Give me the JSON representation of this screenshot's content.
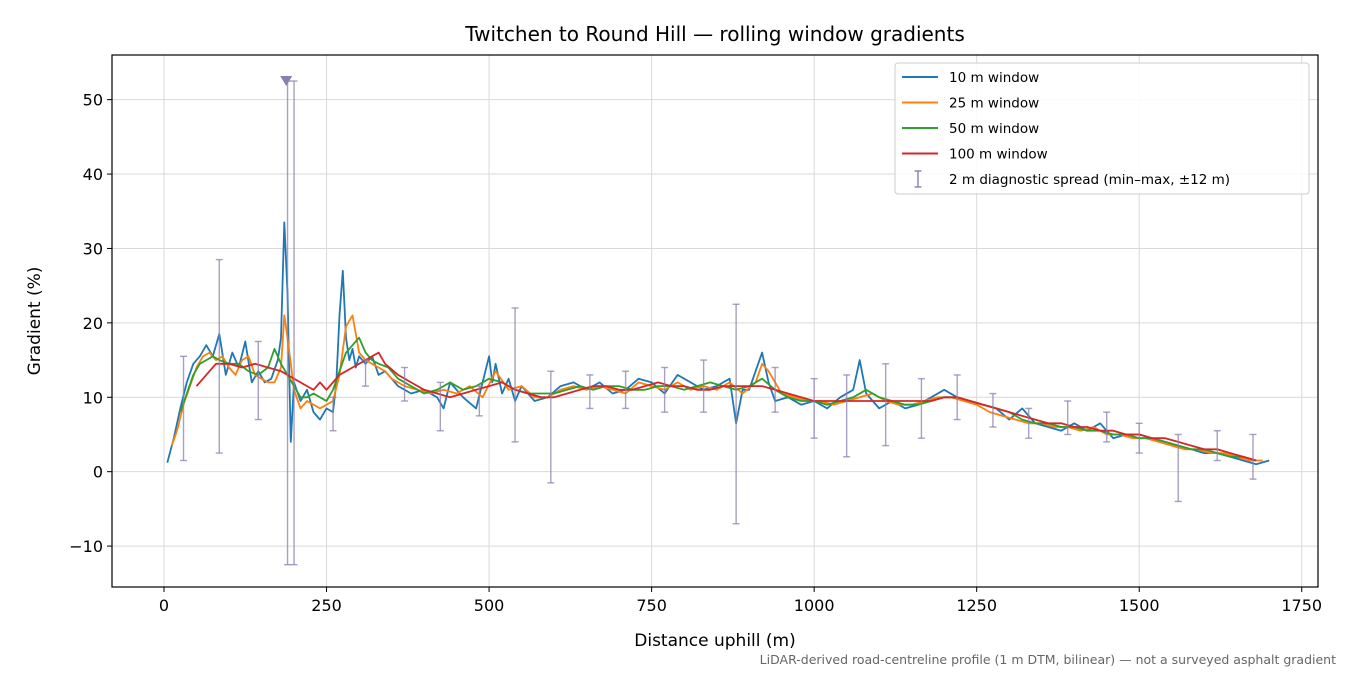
{
  "chart_data": {
    "type": "line",
    "title": "Twitchen to Round Hill — rolling window gradients",
    "xlabel": "Distance uphill (m)",
    "ylabel": "Gradient (%)",
    "footnote": "LiDAR-derived road-centreline profile (1 m DTM, bilinear) — not a surveyed asphalt gradient",
    "xlim": [
      -80,
      1775
    ],
    "ylim": [
      -15.5,
      56
    ],
    "x_ticks": [
      0,
      250,
      500,
      750,
      1000,
      1250,
      1500,
      1750
    ],
    "y_ticks": [
      -10,
      0,
      10,
      20,
      30,
      40,
      50
    ],
    "y_tick_labels": [
      "−10",
      "0",
      "10",
      "20",
      "30",
      "40",
      "50"
    ],
    "grid": true,
    "legend_position": "top-right",
    "colors": {
      "w10": "#1f77b4",
      "w25": "#ff7f0e",
      "w50": "#2ca02c",
      "w100": "#d62728",
      "spread": "#8c7fb0"
    },
    "series": [
      {
        "name": "10 m window",
        "color": "#1f77b4",
        "x": [
          5,
          15,
          25,
          35,
          45,
          55,
          65,
          75,
          85,
          95,
          105,
          115,
          125,
          135,
          145,
          155,
          165,
          175,
          180,
          185,
          190,
          195,
          200,
          210,
          220,
          230,
          240,
          250,
          260,
          265,
          270,
          275,
          280,
          285,
          290,
          295,
          300,
          310,
          320,
          330,
          340,
          350,
          360,
          380,
          400,
          420,
          430,
          440,
          460,
          480,
          500,
          505,
          510,
          520,
          530,
          540,
          550,
          570,
          590,
          610,
          630,
          650,
          670,
          690,
          710,
          730,
          750,
          770,
          790,
          810,
          830,
          850,
          870,
          880,
          890,
          900,
          910,
          920,
          930,
          940,
          960,
          980,
          1000,
          1020,
          1040,
          1060,
          1070,
          1080,
          1100,
          1120,
          1140,
          1160,
          1180,
          1200,
          1220,
          1240,
          1260,
          1280,
          1300,
          1320,
          1340,
          1360,
          1380,
          1400,
          1420,
          1440,
          1460,
          1480,
          1500,
          1520,
          1540,
          1560,
          1580,
          1600,
          1620,
          1640,
          1660,
          1680,
          1700
        ],
        "values": [
          1.2,
          4.5,
          8.5,
          12.0,
          14.5,
          15.5,
          17.0,
          15.5,
          18.5,
          13.0,
          16.0,
          14.0,
          17.5,
          12.0,
          13.5,
          12.0,
          12.5,
          15.0,
          18.0,
          33.5,
          24.0,
          4.0,
          12.0,
          9.5,
          11.0,
          8.0,
          7.0,
          8.5,
          8.0,
          12.0,
          21.0,
          27.0,
          18.0,
          15.0,
          16.5,
          14.0,
          15.5,
          14.5,
          15.5,
          13.0,
          13.5,
          12.5,
          11.5,
          10.5,
          11.0,
          10.0,
          8.5,
          12.0,
          10.0,
          8.5,
          15.5,
          12.0,
          14.5,
          10.5,
          12.5,
          9.5,
          11.5,
          9.5,
          10.0,
          11.5,
          12.0,
          11.0,
          12.0,
          10.5,
          11.0,
          12.5,
          12.0,
          10.5,
          13.0,
          12.0,
          11.0,
          11.5,
          12.5,
          6.5,
          11.0,
          11.0,
          13.5,
          16.0,
          12.0,
          9.5,
          10.0,
          9.0,
          9.5,
          8.5,
          10.0,
          11.0,
          15.0,
          10.5,
          8.5,
          9.5,
          8.5,
          9.0,
          10.0,
          11.0,
          10.0,
          9.5,
          9.0,
          8.5,
          7.0,
          8.5,
          6.5,
          6.0,
          5.5,
          6.5,
          5.5,
          6.5,
          4.5,
          5.0,
          5.0,
          4.5,
          4.0,
          3.5,
          3.0,
          2.5,
          2.5,
          2.0,
          1.5,
          1.0,
          1.5
        ]
      },
      {
        "name": "25 m window",
        "color": "#ff7f0e",
        "x": [
          12,
          20,
          30,
          40,
          50,
          60,
          70,
          80,
          90,
          100,
          110,
          120,
          130,
          140,
          150,
          160,
          170,
          180,
          185,
          190,
          195,
          200,
          210,
          220,
          230,
          240,
          250,
          260,
          270,
          280,
          290,
          300,
          310,
          320,
          330,
          340,
          350,
          370,
          390,
          410,
          430,
          450,
          470,
          490,
          510,
          530,
          550,
          570,
          590,
          610,
          630,
          650,
          670,
          690,
          710,
          730,
          750,
          770,
          790,
          810,
          830,
          850,
          870,
          890,
          910,
          920,
          930,
          950,
          970,
          990,
          1010,
          1030,
          1050,
          1070,
          1090,
          1110,
          1130,
          1150,
          1170,
          1190,
          1210,
          1230,
          1250,
          1270,
          1290,
          1310,
          1330,
          1350,
          1370,
          1390,
          1410,
          1430,
          1450,
          1470,
          1490,
          1510,
          1530,
          1550,
          1570,
          1590,
          1610,
          1630,
          1650,
          1670,
          1690
        ],
        "values": [
          3.5,
          5.5,
          9.0,
          11.5,
          14.0,
          15.5,
          16.0,
          15.0,
          15.5,
          14.0,
          13.0,
          15.0,
          15.5,
          13.0,
          12.5,
          12.0,
          12.0,
          14.0,
          21.0,
          18.0,
          14.5,
          11.0,
          8.5,
          9.5,
          9.0,
          8.5,
          9.0,
          9.5,
          13.0,
          19.5,
          21.0,
          16.0,
          15.0,
          14.5,
          14.0,
          13.5,
          12.5,
          11.5,
          11.0,
          10.5,
          11.0,
          10.5,
          11.5,
          10.0,
          13.5,
          11.0,
          11.5,
          10.0,
          10.0,
          11.0,
          11.5,
          11.0,
          11.5,
          11.0,
          10.5,
          12.0,
          11.5,
          11.0,
          12.0,
          11.0,
          11.5,
          11.0,
          12.0,
          10.5,
          12.0,
          14.5,
          13.5,
          10.5,
          10.0,
          9.5,
          9.5,
          9.0,
          9.5,
          10.0,
          10.5,
          9.5,
          9.0,
          9.0,
          9.5,
          10.0,
          10.0,
          9.5,
          9.0,
          8.0,
          7.5,
          7.0,
          6.5,
          6.5,
          6.0,
          6.0,
          5.5,
          6.0,
          5.0,
          5.0,
          4.5,
          4.5,
          4.0,
          3.5,
          3.0,
          3.0,
          2.5,
          2.5,
          2.0,
          1.5,
          1.5
        ]
      },
      {
        "name": "50 m window",
        "color": "#2ca02c",
        "x": [
          25,
          35,
          45,
          55,
          65,
          75,
          85,
          100,
          115,
          130,
          145,
          160,
          170,
          180,
          190,
          200,
          210,
          220,
          230,
          240,
          250,
          260,
          270,
          280,
          290,
          300,
          310,
          320,
          330,
          345,
          360,
          380,
          400,
          420,
          440,
          460,
          480,
          500,
          520,
          540,
          560,
          580,
          600,
          620,
          640,
          660,
          680,
          700,
          720,
          740,
          760,
          780,
          800,
          820,
          840,
          860,
          880,
          900,
          920,
          940,
          960,
          980,
          1000,
          1020,
          1040,
          1060,
          1080,
          1100,
          1120,
          1140,
          1160,
          1180,
          1200,
          1220,
          1240,
          1260,
          1280,
          1300,
          1320,
          1340,
          1360,
          1380,
          1400,
          1420,
          1440,
          1460,
          1480,
          1500,
          1520,
          1540,
          1560,
          1580,
          1600,
          1620,
          1640,
          1660,
          1680
        ],
        "values": [
          8.0,
          10.5,
          13.0,
          14.5,
          15.0,
          15.5,
          15.0,
          14.5,
          14.5,
          13.5,
          13.0,
          14.0,
          16.5,
          14.5,
          13.0,
          11.5,
          10.0,
          10.0,
          10.5,
          10.0,
          9.5,
          11.0,
          13.5,
          16.0,
          17.0,
          18.0,
          16.0,
          15.0,
          14.5,
          14.0,
          12.5,
          11.5,
          10.5,
          11.0,
          12.0,
          11.0,
          11.5,
          12.5,
          12.0,
          11.0,
          10.5,
          10.5,
          10.5,
          11.0,
          11.5,
          11.0,
          11.5,
          11.5,
          11.0,
          11.0,
          11.5,
          11.5,
          11.0,
          11.5,
          12.0,
          11.5,
          11.0,
          11.5,
          12.5,
          11.0,
          10.0,
          9.5,
          9.5,
          9.0,
          9.5,
          10.0,
          11.0,
          10.0,
          9.5,
          9.0,
          9.0,
          9.5,
          10.0,
          10.0,
          9.5,
          9.0,
          8.5,
          8.0,
          7.0,
          6.5,
          6.5,
          6.0,
          6.0,
          5.5,
          5.5,
          5.0,
          5.0,
          4.5,
          4.5,
          4.0,
          3.5,
          3.0,
          3.0,
          2.5,
          2.0,
          2.0,
          1.5
        ]
      },
      {
        "name": "100 m window",
        "color": "#d62728",
        "x": [
          50,
          60,
          70,
          80,
          90,
          100,
          120,
          140,
          160,
          180,
          200,
          220,
          230,
          240,
          250,
          260,
          270,
          280,
          290,
          300,
          310,
          320,
          330,
          340,
          360,
          380,
          400,
          420,
          440,
          460,
          480,
          500,
          520,
          540,
          560,
          580,
          600,
          620,
          640,
          660,
          680,
          700,
          720,
          740,
          760,
          780,
          800,
          820,
          840,
          860,
          880,
          900,
          920,
          940,
          960,
          980,
          1000,
          1020,
          1040,
          1060,
          1080,
          1100,
          1120,
          1140,
          1160,
          1180,
          1200,
          1220,
          1240,
          1260,
          1280,
          1300,
          1320,
          1340,
          1360,
          1380,
          1400,
          1420,
          1440,
          1460,
          1480,
          1500,
          1520,
          1540,
          1560,
          1580,
          1600,
          1620,
          1640,
          1660,
          1680
        ],
        "values": [
          11.5,
          12.5,
          13.5,
          14.5,
          14.5,
          14.5,
          14.0,
          14.5,
          14.0,
          13.5,
          12.5,
          11.5,
          11.0,
          12.0,
          11.0,
          12.0,
          13.0,
          13.5,
          14.0,
          14.5,
          15.0,
          15.5,
          16.0,
          14.5,
          13.0,
          12.0,
          11.0,
          10.5,
          10.0,
          10.5,
          11.0,
          11.5,
          12.0,
          11.0,
          10.5,
          10.0,
          10.0,
          10.5,
          11.0,
          11.5,
          11.5,
          11.0,
          11.0,
          11.5,
          12.0,
          11.5,
          11.5,
          11.0,
          11.0,
          11.5,
          11.5,
          11.5,
          11.5,
          11.0,
          10.5,
          10.0,
          9.5,
          9.5,
          9.5,
          9.5,
          9.5,
          9.5,
          9.5,
          9.5,
          9.5,
          9.5,
          10.0,
          10.0,
          9.5,
          9.0,
          8.5,
          8.0,
          7.5,
          7.0,
          6.5,
          6.5,
          6.0,
          6.0,
          5.5,
          5.5,
          5.0,
          5.0,
          4.5,
          4.5,
          4.0,
          3.5,
          3.0,
          3.0,
          2.5,
          2.0,
          1.5
        ]
      },
      {
        "name": "2 m diagnostic spread (min–max, ±12 m)",
        "type": "errorbar",
        "color": "#8c7fb0",
        "x": [
          30,
          85,
          145,
          190,
          200,
          260,
          310,
          370,
          425,
          485,
          540,
          595,
          655,
          710,
          770,
          830,
          880,
          940,
          1000,
          1050,
          1110,
          1165,
          1220,
          1275,
          1330,
          1390,
          1450,
          1500,
          1560,
          1620,
          1675
        ],
        "min": [
          1.5,
          2.5,
          7.0,
          -12.5,
          -12.5,
          5.5,
          11.5,
          9.5,
          5.5,
          7.5,
          4.0,
          -1.5,
          8.5,
          8.5,
          8.0,
          8.0,
          -7.0,
          8.0,
          4.5,
          2.0,
          3.5,
          4.5,
          7.0,
          6.0,
          4.5,
          5.0,
          4.0,
          2.5,
          -4.0,
          1.5,
          -1.0
        ],
        "max": [
          15.5,
          28.5,
          17.5,
          52.5,
          52.5,
          10.0,
          15.0,
          14.0,
          12.0,
          11.5,
          22.0,
          13.5,
          13.0,
          13.5,
          14.0,
          15.0,
          22.5,
          14.0,
          12.5,
          13.0,
          14.5,
          12.5,
          13.0,
          10.5,
          8.5,
          9.5,
          8.0,
          6.5,
          5.0,
          5.5,
          5.0
        ]
      }
    ],
    "clipped_marker": {
      "x": 188,
      "y": 52.5
    }
  }
}
